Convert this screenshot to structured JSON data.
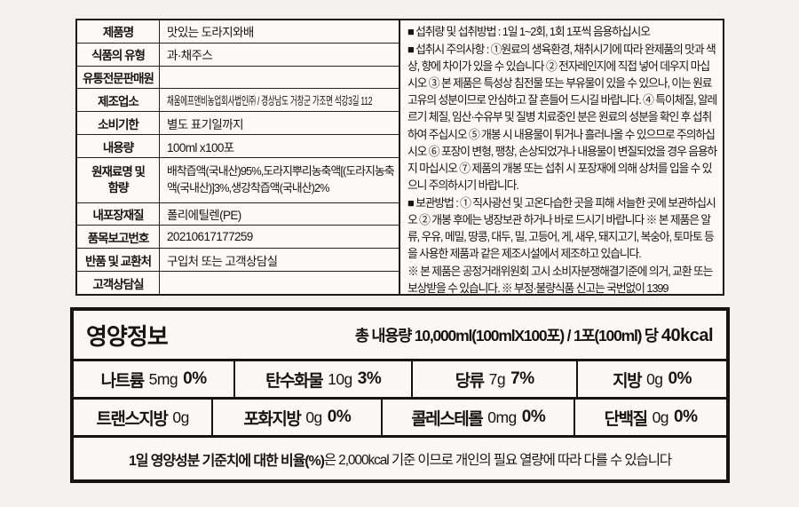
{
  "palette": {
    "page_background": "#f2f1ee",
    "panel_background": "#fbfaf7",
    "border": "#141414",
    "text": "#171513"
  },
  "product": {
    "rows": [
      {
        "label": "제품명",
        "value": "맛있는 도라지와배"
      },
      {
        "label": "식품의 유형",
        "value": "과·채주스"
      },
      {
        "label": "유통전문판매원",
        "value": ""
      },
      {
        "label": "제조업소",
        "value": "채움에프앤비농업회사법인㈜ / 경상남도 거창군 가조면 석강3길 112"
      },
      {
        "label": "소비기한",
        "value": "별도 표기일까지"
      },
      {
        "label": "내용량",
        "value": "100ml x100포"
      },
      {
        "label": "원재료명 및 함량",
        "value": "배착즙액(국내산)95%,도라지뿌리농축액[(도라지농축액(국내산)]3%,생강착즙액(국내산)2%"
      },
      {
        "label": "내포장재질",
        "value": "폴리에틸렌(PE)"
      },
      {
        "label": "품목보고번호",
        "value": "20210617177259"
      },
      {
        "label": "반품 및 교환처",
        "value": "구입처 또는 고객상담실"
      },
      {
        "label": "고객상담실",
        "value": ""
      }
    ]
  },
  "notices": {
    "intake": "■ 섭취량 및 섭취방법 : 1일 1~2회, 1회 1포씩 음용하십시오",
    "precautions": "■ 섭취시 주의사항 : ①원료의 생육환경, 채취시기에 따라 완제품의 맛과 색상, 향에 차이가 있을 수 있습니다 ② 전자레인지에 직접 넣어 데우지 마십시오 ③ 본 제품은 특성상 침전물 또는 부유물이 있을 수 있으나, 이는 원료 고유의 성분이므로 안심하고 잘 흔들어 드시길 바랍니다. ④ 특이체질, 알레르기 체질, 임산·수유부 및 질병 치료중인 분은 원료의 성분을 확인 후 섭취하여 주십시오 ⑤ 개봉 시 내용물이 튀거나 흘러나올 수 있으므로 주의하십시오 ⑥ 포장이 변형, 팽창, 손상되었거나 내용물이 변질되었을 경우 음용하지 마십시오 ⑦ 제품의 개봉 또는 섭취 시 포장재에 의해 상처를 입을 수 있으니 주의하시기 바랍니다.",
    "storage": "■ 보관방법 : ① 직사광선 및 고온다습한 곳을 피해 서늘한 곳에 보관하십시오 ② 개봉 후에는 냉장보관 하거나 바로 드시기 바랍니다 ※ 본 제품은 알류, 우유, 메밀, 땅콩, 대두, 밀, 고등어, 게, 새우, 돼지고기, 복숭아, 토마토 등을 사용한 제품과 같은 제조시설에서 제조하고 있습니다.",
    "exchange": "※ 본 제품은 공정거래위원회 고시 소비자분쟁해결기준에 의거, 교환 또는 보상받을 수 있습니다. ※ 부정·불량식품 신고는 국번없이 1399"
  },
  "nutrition": {
    "title": "영양정보",
    "serving_prefix": "총 내용량 10,000ml(100mlX100포) / 1포(100ml) 당",
    "calories": "40kcal",
    "rows": [
      [
        {
          "name": "나트륨",
          "amount": "5mg",
          "percent": "0%"
        },
        {
          "name": "탄수화물",
          "amount": "10g",
          "percent": "3%"
        },
        {
          "name": "당류",
          "amount": "7g",
          "percent": "7%"
        },
        {
          "name": "지방",
          "amount": "0g",
          "percent": "0%"
        }
      ],
      [
        {
          "name": "트랜스지방",
          "amount": "0g",
          "percent": ""
        },
        {
          "name": "포화지방",
          "amount": "0g",
          "percent": "0%"
        },
        {
          "name": "콜레스테롤",
          "amount": "0mg",
          "percent": "0%"
        },
        {
          "name": "단백질",
          "amount": "0g",
          "percent": "0%"
        }
      ]
    ],
    "footnote_bold": "1일 영양성분 기준치에 대한 비율(%)",
    "footnote_rest": "은 2,000kcal 기준 이므로 개인의 필요 열량에 따라 다를 수 있습니다"
  }
}
